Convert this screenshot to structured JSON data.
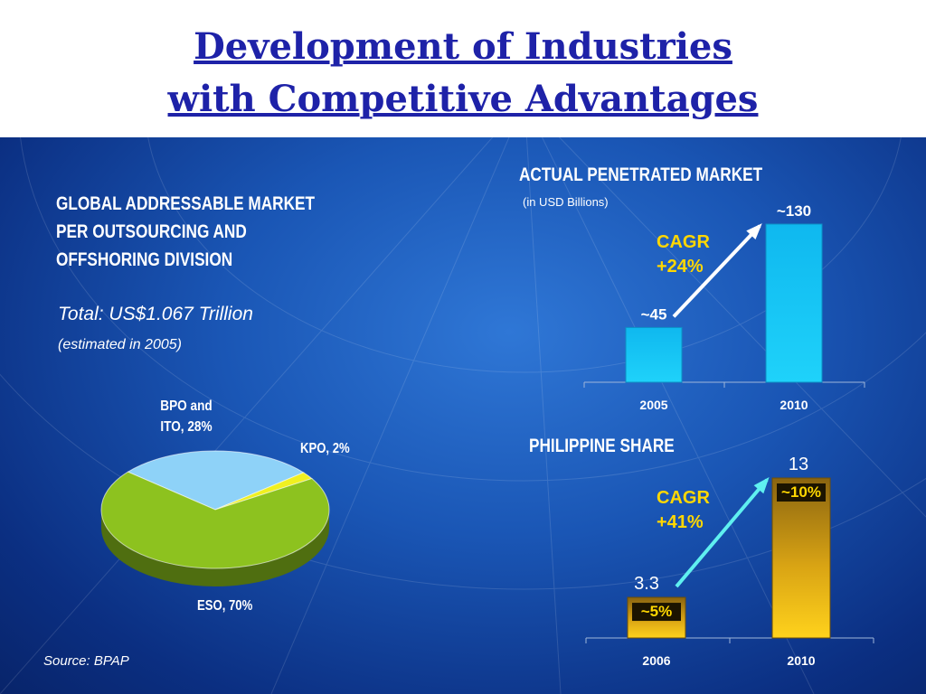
{
  "title": {
    "line1": "Development of Industries",
    "line2": "with Competitive Advantages"
  },
  "left": {
    "heading_lines": [
      "GLOBAL ADDRESSABLE MARKET",
      "PER OUTSOURCING AND",
      "OFFSHORING DIVISION"
    ],
    "total": "Total: US$1.067 Trillion",
    "estimate_note": "(estimated in 2005)",
    "source": "Source: BPAP"
  },
  "colors": {
    "title": "#1e22a8",
    "panel": "#1a56b5",
    "cagr_text": "#ffd700",
    "pie_eso": "#8dc21f",
    "pie_bpo": "#8ed2f8",
    "pie_kpo": "#f0f020",
    "market_bar": "#18c7f5",
    "share_bar": "#f5c518"
  },
  "chart_data": [
    {
      "type": "pie",
      "labels": [
        "BPO and ITO, 28%",
        "KPO, 2%",
        "ESO, 70%"
      ],
      "categories": [
        "BPO and ITO",
        "KPO",
        "ESO"
      ],
      "values": [
        28,
        2,
        70
      ]
    },
    {
      "type": "bar",
      "title": "ACTUAL PENETRATED MARKET",
      "subtitle": "(in USD Billions)",
      "categories": [
        "2005",
        "2010"
      ],
      "values": [
        45,
        130
      ],
      "value_labels": [
        "~45",
        "~130"
      ],
      "ylim": [
        0,
        130
      ],
      "annotation": {
        "line1": "CAGR",
        "line2": "+24%"
      }
    },
    {
      "type": "bar",
      "title": "PHILIPPINE SHARE",
      "categories": [
        "2006",
        "2010"
      ],
      "values": [
        3.3,
        13
      ],
      "value_labels": [
        "3.3",
        "13"
      ],
      "inner_labels": [
        "~5%",
        "~10%"
      ],
      "ylim": [
        0,
        13
      ],
      "annotation": {
        "line1": "CAGR",
        "line2": "+41%"
      }
    }
  ]
}
